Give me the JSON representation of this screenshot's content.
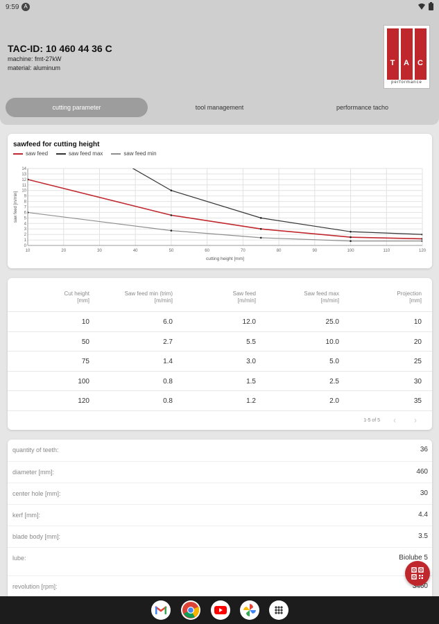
{
  "status_bar": {
    "time": "9:59",
    "notification_badge": "A"
  },
  "header": {
    "tac_id": "TAC-ID: 10 460 44 36 C",
    "machine": "machine: fmt-27kW",
    "material": "material: aluminum",
    "logo": {
      "letters": [
        "T",
        "A",
        "C"
      ],
      "subtitle": "performance"
    }
  },
  "tabs": [
    {
      "label": "cutting parameter",
      "active": true
    },
    {
      "label": "tool management",
      "active": false
    },
    {
      "label": "performance tacho",
      "active": false
    }
  ],
  "colors": {
    "accent": "#c0272d",
    "saw_feed": "#c0272d",
    "saw_feed_max": "#333333",
    "saw_feed_min": "#8e8e8e"
  },
  "chart_data": {
    "type": "line",
    "title": "sawfeed for cutting height",
    "xlabel": "cutting height [mm]",
    "ylabel": "saw feed [m/min]",
    "xlim": [
      10,
      120
    ],
    "ylim": [
      0,
      14
    ],
    "x_ticks": [
      10,
      20,
      30,
      40,
      50,
      60,
      70,
      80,
      90,
      100,
      110,
      120
    ],
    "y_ticks": [
      0,
      1,
      2,
      3,
      4,
      5,
      6,
      7,
      8,
      9,
      10,
      11,
      12,
      13,
      14
    ],
    "grid": true,
    "legend_position": "top-left",
    "series": [
      {
        "name": "saw feed",
        "color": "#c0272d",
        "x": [
          10,
          50,
          75,
          100,
          120
        ],
        "y": [
          12.0,
          5.5,
          3.0,
          1.5,
          1.2
        ]
      },
      {
        "name": "saw feed max",
        "color": "#333333",
        "x": [
          10,
          50,
          75,
          100,
          120
        ],
        "y": [
          25.0,
          10.0,
          5.0,
          2.5,
          2.0
        ]
      },
      {
        "name": "saw feed min",
        "color": "#8e8e8e",
        "x": [
          10,
          50,
          75,
          100,
          120
        ],
        "y": [
          6.0,
          2.7,
          1.4,
          0.8,
          0.8
        ]
      }
    ]
  },
  "table": {
    "headers": [
      "Cut height\n[mm]",
      "Saw feed min (trim)\n[m/min]",
      "Saw feed\n[m/min]",
      "Saw feed max\n[m/min]",
      "Projection\n[mm]"
    ],
    "rows": [
      [
        "10",
        "6.0",
        "12.0",
        "25.0",
        "10"
      ],
      [
        "50",
        "2.7",
        "5.5",
        "10.0",
        "20"
      ],
      [
        "75",
        "1.4",
        "3.0",
        "5.0",
        "25"
      ],
      [
        "100",
        "0.8",
        "1.5",
        "2.5",
        "30"
      ],
      [
        "120",
        "0.8",
        "1.2",
        "2.0",
        "35"
      ]
    ],
    "pagination": "1-5 of 5"
  },
  "parameters": [
    {
      "label": "quantity of teeth:",
      "value": "36"
    },
    {
      "label": "diameter [mm]:",
      "value": "460"
    },
    {
      "label": "center hole [mm]:",
      "value": "30"
    },
    {
      "label": "kerf [mm]:",
      "value": "4.4"
    },
    {
      "label": "blade body [mm]:",
      "value": "3.5"
    },
    {
      "label": "lube:",
      "value": "Biolube 5"
    },
    {
      "label": "revolution [rpm]:",
      "value": "3460"
    }
  ],
  "nav_apps": [
    "gmail-icon",
    "chrome-icon",
    "youtube-icon",
    "photos-icon",
    "app-drawer-icon"
  ]
}
